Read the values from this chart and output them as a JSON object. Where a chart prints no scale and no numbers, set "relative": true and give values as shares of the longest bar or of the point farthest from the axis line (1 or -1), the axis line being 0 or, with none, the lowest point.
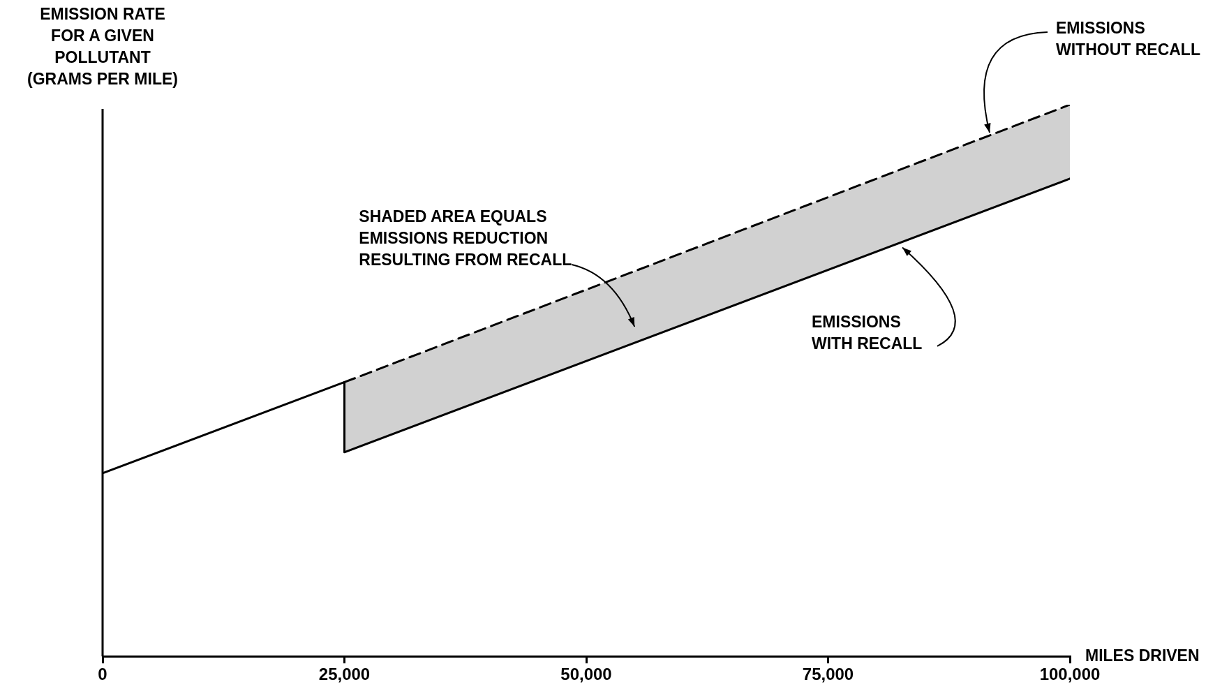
{
  "chart_data": {
    "type": "line",
    "relative": true,
    "ylabel": "EMISSION RATE FOR A GIVEN POLLUTANT (GRAMS PER MILE)",
    "xlabel": "MILES DRIVEN",
    "xlim": [
      0,
      100000
    ],
    "xticks": [
      0,
      {
        "value": 25000,
        "label": "25,000"
      },
      {
        "value": 50000,
        "label": "50,000"
      },
      {
        "value": 75000,
        "label": "75,000"
      },
      {
        "value": 100000,
        "label": "100,000"
      }
    ],
    "grid": false,
    "legend": false,
    "marker": "none",
    "series": [
      {
        "name": "EMISSIONS WITH RECALL",
        "color": "#000000",
        "line_style": "solid",
        "x": [
          0,
          25000,
          25000,
          100000
        ],
        "values": [
          0.332,
          0.497,
          0.37,
          0.866
        ]
      },
      {
        "name": "EMISSIONS WITHOUT RECALL",
        "color": "#000000",
        "line_style": "dashed",
        "x": [
          25000,
          100000
        ],
        "values": [
          0.497,
          1
        ],
        "lower": [
          0.37,
          0.866
        ],
        "upper": [
          0.497,
          1
        ]
      }
    ],
    "annotations": [
      "SHADED AREA EQUALS EMISSIONS REDUCTION RESULTING FROM RECALL"
    ]
  }
}
